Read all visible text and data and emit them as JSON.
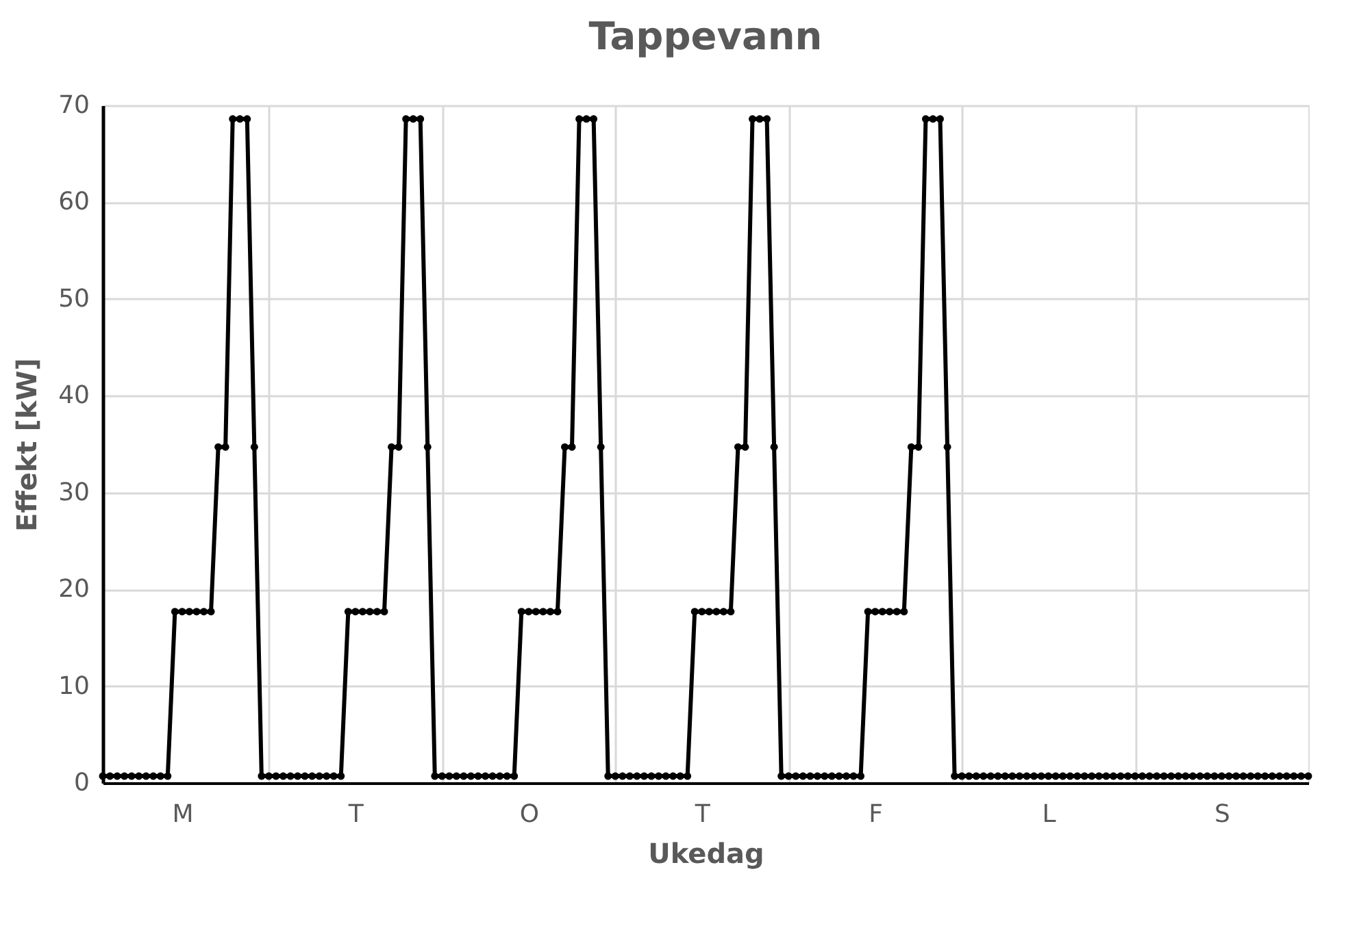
{
  "chart_data": {
    "type": "line",
    "title": "Tappevann",
    "xlabel": "Ukedag",
    "ylabel": "Effekt [kW]",
    "categories": [
      null,
      null,
      null,
      null,
      null,
      null,
      null,
      null,
      null,
      null,
      null,
      "M",
      null,
      null,
      null,
      null,
      null,
      null,
      null,
      null,
      null,
      null,
      null,
      null,
      null,
      null,
      null,
      null,
      null,
      null,
      null,
      null,
      null,
      null,
      null,
      "T",
      null,
      null,
      null,
      null,
      null,
      null,
      null,
      null,
      null,
      null,
      null,
      null,
      null,
      null,
      null,
      null,
      null,
      null,
      null,
      null,
      null,
      null,
      null,
      "O",
      null,
      null,
      null,
      null,
      null,
      null,
      null,
      null,
      null,
      null,
      null,
      null,
      null,
      null,
      null,
      null,
      null,
      null,
      null,
      null,
      null,
      null,
      null,
      "T",
      null,
      null,
      null,
      null,
      null,
      null,
      null,
      null,
      null,
      null,
      null,
      null,
      null,
      null,
      null,
      null,
      null,
      null,
      null,
      null,
      null,
      null,
      null,
      "F",
      null,
      null,
      null,
      null,
      null,
      null,
      null,
      null,
      null,
      null,
      null,
      null,
      null,
      null,
      null,
      null,
      null,
      null,
      null,
      null,
      null,
      null,
      null,
      "L",
      null,
      null,
      null,
      null,
      null,
      null,
      null,
      null,
      null,
      null,
      null,
      null,
      null,
      null,
      null,
      null,
      null,
      null,
      null,
      null,
      null,
      null,
      null,
      "S",
      null,
      null,
      null,
      null,
      null,
      null,
      null,
      null,
      null,
      null,
      null,
      null
    ],
    "series": [
      {
        "color": "#000000",
        "values": [
          0.7,
          0.7,
          0.7,
          0.7,
          0.7,
          0.7,
          0.7,
          0.7,
          0.7,
          0.7,
          17.7,
          17.7,
          17.7,
          17.7,
          17.7,
          17.7,
          34.7,
          34.7,
          68.6,
          68.6,
          68.6,
          34.7,
          0.7,
          0.7,
          0.7,
          0.7,
          0.7,
          0.7,
          0.7,
          0.7,
          0.7,
          0.7,
          0.7,
          0.7,
          17.7,
          17.7,
          17.7,
          17.7,
          17.7,
          17.7,
          34.7,
          34.7,
          68.6,
          68.6,
          68.6,
          34.7,
          0.7,
          0.7,
          0.7,
          0.7,
          0.7,
          0.7,
          0.7,
          0.7,
          0.7,
          0.7,
          0.7,
          0.7,
          17.7,
          17.7,
          17.7,
          17.7,
          17.7,
          17.7,
          34.7,
          34.7,
          68.6,
          68.6,
          68.6,
          34.7,
          0.7,
          0.7,
          0.7,
          0.7,
          0.7,
          0.7,
          0.7,
          0.7,
          0.7,
          0.7,
          0.7,
          0.7,
          17.7,
          17.7,
          17.7,
          17.7,
          17.7,
          17.7,
          34.7,
          34.7,
          68.6,
          68.6,
          68.6,
          34.7,
          0.7,
          0.7,
          0.7,
          0.7,
          0.7,
          0.7,
          0.7,
          0.7,
          0.7,
          0.7,
          0.7,
          0.7,
          17.7,
          17.7,
          17.7,
          17.7,
          17.7,
          17.7,
          34.7,
          34.7,
          68.6,
          68.6,
          68.6,
          34.7,
          0.7,
          0.7,
          0.7,
          0.7,
          0.7,
          0.7,
          0.7,
          0.7,
          0.7,
          0.7,
          0.7,
          0.7,
          0.7,
          0.7,
          0.7,
          0.7,
          0.7,
          0.7,
          0.7,
          0.7,
          0.7,
          0.7,
          0.7,
          0.7,
          0.7,
          0.7,
          0.7,
          0.7,
          0.7,
          0.7,
          0.7,
          0.7,
          0.7,
          0.7,
          0.7,
          0.7,
          0.7,
          0.7,
          0.7,
          0.7,
          0.7,
          0.7,
          0.7,
          0.7,
          0.7,
          0.7,
          0.7,
          0.7,
          0.7,
          0.7
        ]
      }
    ],
    "ylim": [
      0,
      70
    ],
    "yticks": [
      0,
      10,
      20,
      30,
      40,
      50,
      60,
      70
    ],
    "grid": true,
    "marker": "circle",
    "line_style": "solid"
  }
}
